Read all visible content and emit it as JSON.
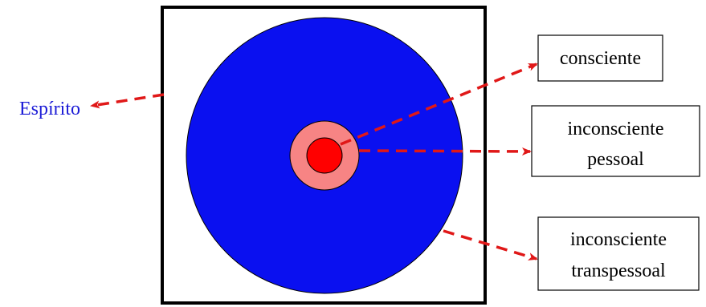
{
  "colors": {
    "spirit": "#0a10f0",
    "personal_unconscious": "#f78484",
    "conscious": "#ff0000",
    "arrow": "#e01818",
    "frame": "#000000",
    "spirit_label": "#1a1ad6"
  },
  "labels": {
    "spirit": "Espírito",
    "conscious": "consciente",
    "personal_line1": "inconsciente",
    "personal_line2": "pessoal",
    "transpersonal_line1": "inconsciente",
    "transpersonal_line2": "transpessoal"
  }
}
